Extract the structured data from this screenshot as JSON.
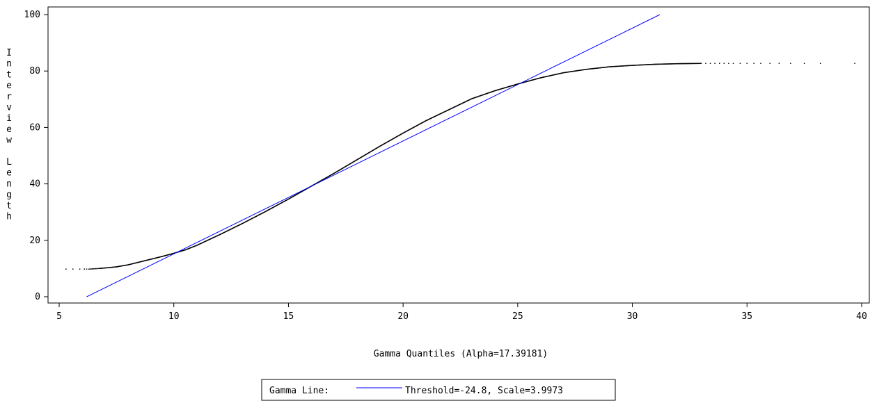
{
  "chart_data": {
    "type": "scatter",
    "title": "",
    "xlabel": "Gamma Quantiles (Alpha=17.39181)",
    "ylabel": "Interview Length",
    "xlim": [
      5,
      40
    ],
    "ylim": [
      0,
      100
    ],
    "x_ticks": [
      5,
      10,
      15,
      20,
      25,
      30,
      35,
      40
    ],
    "y_ticks": [
      0,
      20,
      40,
      60,
      80,
      100
    ],
    "grid": false,
    "colors": {
      "points": "#000000",
      "reference_line": "#0000ff"
    },
    "reference_line": {
      "label": "Gamma Line:",
      "description": "Threshold=-24.8, Scale=3.9973",
      "threshold": -24.8,
      "scale": 3.9973,
      "x": [
        6.2,
        31.2
      ],
      "y": [
        0,
        100
      ]
    },
    "series": [
      {
        "x": [
          5.3,
          5.6,
          5.9,
          6.1,
          6.3,
          6.5,
          6.7,
          7.0,
          7.5,
          8.0,
          8.5,
          9.0,
          9.5,
          10.0,
          10.5,
          11.0,
          12.0,
          13.0,
          14.0,
          15.0,
          16.0,
          17.0,
          18.0,
          19.0,
          20.0,
          21.0,
          22.0,
          23.0,
          24.0,
          25.0,
          26.0,
          27.0,
          28.0,
          29.0,
          30.0,
          31.0,
          32.0,
          33.0,
          33.5,
          34.0,
          34.5,
          35.0,
          35.5,
          36.0,
          36.5,
          37.0,
          37.5,
          38.2,
          39.7
        ],
        "y": [
          9.8,
          9.8,
          9.8,
          9.8,
          9.8,
          9.9,
          10.0,
          10.2,
          10.6,
          11.3,
          12.3,
          13.3,
          14.3,
          15.4,
          16.6,
          18.2,
          22.0,
          26.0,
          30.2,
          34.6,
          39.2,
          43.8,
          48.6,
          53.4,
          58.0,
          62.4,
          66.3,
          70.2,
          73.0,
          75.4,
          77.6,
          79.4,
          80.6,
          81.5,
          82.0,
          82.4,
          82.6,
          82.7,
          82.7,
          82.7,
          82.7,
          82.7,
          82.7,
          82.7,
          82.7,
          82.7,
          82.7,
          82.7,
          82.7
        ]
      }
    ]
  }
}
